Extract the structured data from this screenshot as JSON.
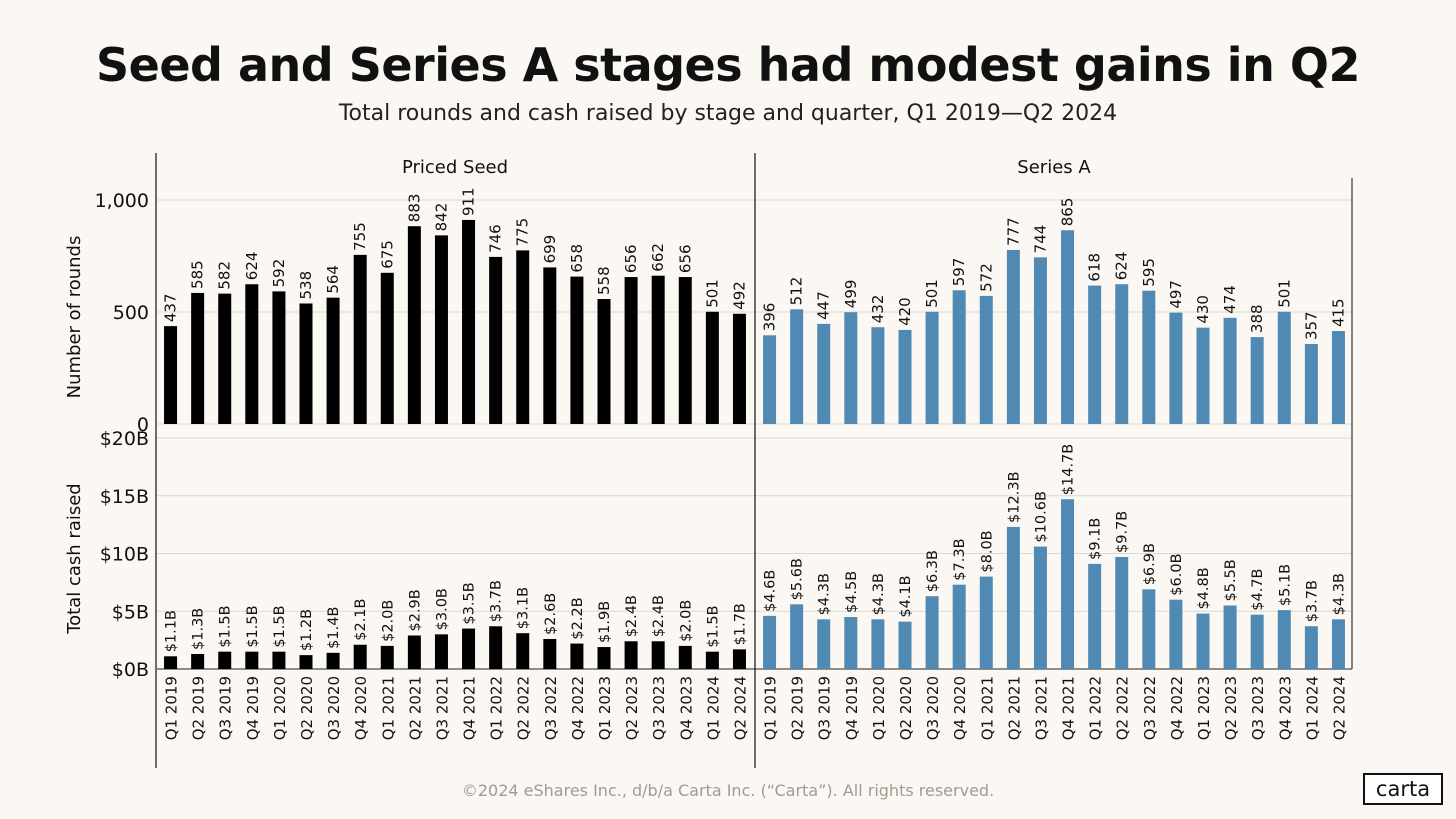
{
  "header": {
    "title": "Seed and Series A stages had modest gains in Q2",
    "subtitle": "Total rounds and cash raised by stage and quarter, Q1 2019—Q2 2024"
  },
  "footer": {
    "copyright": "©2024 eShares Inc., d/b/a Carta Inc. (“Carta”). All rights reserved."
  },
  "logo": {
    "text": "carta"
  },
  "chart_data": {
    "type": "bar",
    "categories": [
      "Q1 2019",
      "Q2 2019",
      "Q3 2019",
      "Q4 2019",
      "Q1 2020",
      "Q2 2020",
      "Q3 2020",
      "Q4 2020",
      "Q1 2021",
      "Q2 2021",
      "Q3 2021",
      "Q4 2021",
      "Q1 2022",
      "Q2 2022",
      "Q3 2022",
      "Q4 2022",
      "Q1 2023",
      "Q2 2023",
      "Q3 2023",
      "Q4 2023",
      "Q1 2024",
      "Q2 2024"
    ],
    "panels": [
      {
        "name": "Priced Seed",
        "color": "#000000"
      },
      {
        "name": "Series A",
        "color": "#5189b5"
      }
    ],
    "rows": [
      {
        "ylabel": "Number of rounds",
        "ylim": [
          0,
          1000
        ],
        "ticks": [
          0,
          500,
          1000
        ],
        "tick_labels": [
          "0",
          "500",
          "1,000"
        ],
        "series": [
          {
            "name": "Priced Seed",
            "values": [
              437,
              585,
              582,
              624,
              592,
              538,
              564,
              755,
              675,
              883,
              842,
              911,
              746,
              775,
              699,
              658,
              558,
              656,
              662,
              656,
              501,
              492
            ],
            "labels": [
              "437",
              "585",
              "582",
              "624",
              "592",
              "538",
              "564",
              "755",
              "675",
              "883",
              "842",
              "911",
              "746",
              "775",
              "699",
              "658",
              "558",
              "656",
              "662",
              "656",
              "501",
              "492"
            ]
          },
          {
            "name": "Series A",
            "values": [
              396,
              512,
              447,
              499,
              432,
              420,
              501,
              597,
              572,
              777,
              744,
              865,
              618,
              624,
              595,
              497,
              430,
              474,
              388,
              501,
              357,
              415
            ],
            "labels": [
              "396",
              "512",
              "447",
              "499",
              "432",
              "420",
              "501",
              "597",
              "572",
              "777",
              "744",
              "865",
              "618",
              "624",
              "595",
              "497",
              "430",
              "474",
              "388",
              "501",
              "357",
              "415"
            ]
          }
        ]
      },
      {
        "ylabel": "Total cash raised",
        "ylim": [
          0,
          20
        ],
        "ticks": [
          0,
          5,
          10,
          15,
          20
        ],
        "tick_labels": [
          "$0B",
          "$5B",
          "$10B",
          "$15B",
          "$20B"
        ],
        "series": [
          {
            "name": "Priced Seed",
            "values": [
              1.1,
              1.3,
              1.5,
              1.5,
              1.5,
              1.2,
              1.4,
              2.1,
              2.0,
              2.9,
              3.0,
              3.5,
              3.7,
              3.1,
              2.6,
              2.2,
              1.9,
              2.4,
              2.4,
              2.0,
              1.5,
              1.7
            ],
            "labels": [
              "$1.1B",
              "$1.3B",
              "$1.5B",
              "$1.5B",
              "$1.5B",
              "$1.2B",
              "$1.4B",
              "$2.1B",
              "$2.0B",
              "$2.9B",
              "$3.0B",
              "$3.5B",
              "$3.7B",
              "$3.1B",
              "$2.6B",
              "$2.2B",
              "$1.9B",
              "$2.4B",
              "$2.4B",
              "$2.0B",
              "$1.5B",
              "$1.7B"
            ]
          },
          {
            "name": "Series A",
            "values": [
              4.6,
              5.6,
              4.3,
              4.5,
              4.3,
              4.1,
              6.3,
              7.3,
              8.0,
              12.3,
              10.6,
              14.7,
              9.1,
              9.7,
              6.9,
              6.0,
              4.8,
              5.5,
              4.7,
              5.1,
              3.7,
              4.3
            ],
            "labels": [
              "$4.6B",
              "$5.6B",
              "$4.3B",
              "$4.5B",
              "$4.3B",
              "$4.1B",
              "$6.3B",
              "$7.3B",
              "$8.0B",
              "$12.3B",
              "$10.6B",
              "$14.7B",
              "$9.1B",
              "$9.7B",
              "$6.9B",
              "$6.0B",
              "$4.8B",
              "$5.5B",
              "$4.7B",
              "$5.1B",
              "$3.7B",
              "$4.3B"
            ]
          }
        ]
      }
    ]
  }
}
